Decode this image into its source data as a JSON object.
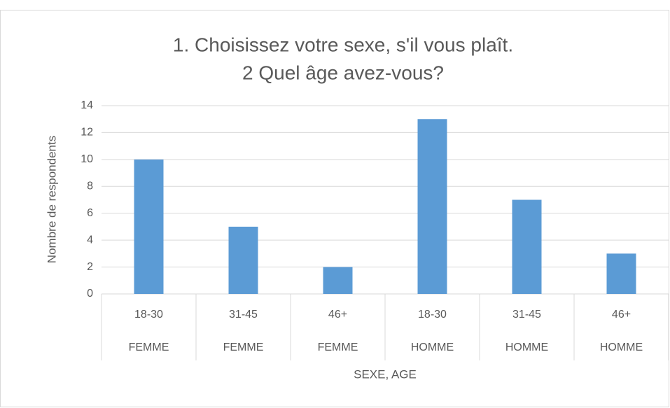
{
  "chart_data": {
    "type": "bar",
    "title": [
      "1. Choisissez votre sexe, s'il vous plaît.",
      "2 Quel âge avez-vous?"
    ],
    "categories": [
      "18-30",
      "31-45",
      "46+",
      "18-30",
      "31-45",
      "46+"
    ],
    "category_groups": [
      "FEMME",
      "FEMME",
      "FEMME",
      "HOMME",
      "HOMME",
      "HOMME"
    ],
    "values": [
      10,
      5,
      2,
      13,
      7,
      3
    ],
    "color": "#5b9bd5",
    "x_label": "SEXE, AGE",
    "y_label": "Nombre de respondents",
    "ylim": [
      0,
      14
    ],
    "yticks": [
      0,
      2,
      4,
      6,
      8,
      10,
      12,
      14
    ],
    "grid": true
  }
}
